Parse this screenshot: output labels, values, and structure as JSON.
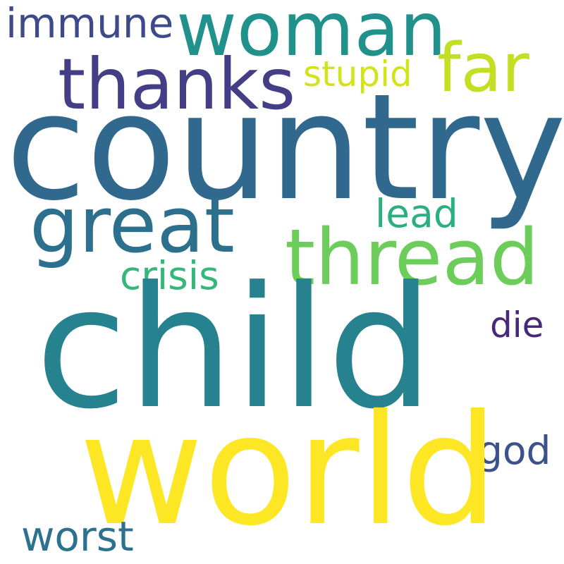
{
  "words": {
    "country": {
      "text": "country",
      "color": "#31688e"
    },
    "child": {
      "text": "child",
      "color": "#26828e"
    },
    "world": {
      "text": "world",
      "color": "#fde725"
    },
    "woman": {
      "text": "woman",
      "color": "#21918c"
    },
    "thanks": {
      "text": "thanks",
      "color": "#433e85"
    },
    "great": {
      "text": "great",
      "color": "#2d708e"
    },
    "thread": {
      "text": "thread",
      "color": "#6ccd5a"
    },
    "far": {
      "text": "far",
      "color": "#c2df23"
    },
    "immune": {
      "text": "immune",
      "color": "#3e4989"
    },
    "stupid": {
      "text": "stupid",
      "color": "#d2e21b"
    },
    "lead": {
      "text": "lead",
      "color": "#2ab07f"
    },
    "crisis": {
      "text": "crisis",
      "color": "#35b779"
    },
    "die": {
      "text": "die",
      "color": "#482878"
    },
    "god": {
      "text": "god",
      "color": "#3b528b"
    },
    "worst": {
      "text": "worst",
      "color": "#2c728e"
    }
  }
}
